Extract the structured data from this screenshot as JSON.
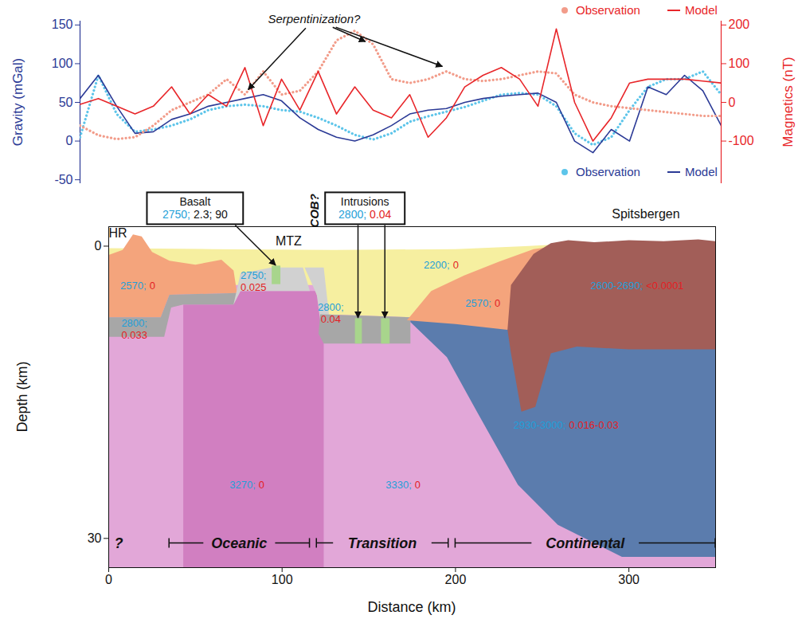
{
  "chart_data": [
    {
      "type": "line",
      "ylabel": "Gravity (mGal)",
      "x": [
        0,
        10,
        20,
        30,
        40,
        50,
        60,
        70,
        80,
        90,
        100,
        110,
        120,
        130,
        140,
        150,
        160,
        170,
        180,
        190,
        200,
        210,
        220,
        230,
        240,
        250,
        260,
        270,
        280,
        290,
        300,
        310,
        320,
        330,
        340,
        350
      ],
      "xlim": [
        0,
        350
      ],
      "ylim": [
        -55,
        155
      ],
      "yticks": [
        -50,
        0,
        50,
        100,
        150
      ],
      "tick_labels": "y",
      "legend": "bottom-right",
      "series": [
        {
          "name": "Observation",
          "color": "#5dc5ea",
          "line_style": "dotted",
          "values": [
            5,
            85,
            35,
            12,
            15,
            20,
            28,
            40,
            45,
            47,
            45,
            40,
            38,
            30,
            20,
            8,
            2,
            10,
            25,
            32,
            38,
            44,
            52,
            60,
            62,
            60,
            45,
            10,
            -5,
            5,
            40,
            70,
            80,
            80,
            90,
            60
          ]
        },
        {
          "name": "Model",
          "color": "#2b3a96",
          "line_style": "solid",
          "values": [
            55,
            85,
            45,
            10,
            12,
            28,
            35,
            45,
            50,
            55,
            60,
            52,
            30,
            15,
            5,
            0,
            8,
            20,
            35,
            40,
            42,
            50,
            55,
            58,
            60,
            62,
            50,
            0,
            -15,
            15,
            0,
            70,
            60,
            85,
            65,
            20
          ]
        }
      ],
      "annotations": [
        {
          "text": "Serpentinization?",
          "x": 128,
          "y": 157,
          "targets": [
            [
              92,
              66
            ],
            [
              156,
              128
            ],
            [
              198,
              96
            ]
          ]
        }
      ]
    },
    {
      "type": "line",
      "ylabel": "Magnetics (nT)",
      "x": [
        0,
        10,
        20,
        30,
        40,
        50,
        60,
        70,
        80,
        90,
        100,
        110,
        120,
        130,
        140,
        150,
        160,
        170,
        180,
        190,
        200,
        210,
        220,
        230,
        240,
        250,
        260,
        270,
        280,
        290,
        300,
        310,
        320,
        330,
        340,
        350
      ],
      "xlim": [
        0,
        350
      ],
      "ylim": [
        -210,
        210
      ],
      "yticks": [
        -100,
        0,
        100,
        200
      ],
      "tick_labels": "y",
      "legend": "top-right",
      "series": [
        {
          "name": "Observation",
          "color": "#f29c8a",
          "line_style": "dotted",
          "values": [
            -60,
            -85,
            -95,
            -90,
            -60,
            -20,
            0,
            20,
            60,
            20,
            80,
            20,
            30,
            80,
            160,
            185,
            150,
            60,
            50,
            60,
            80,
            60,
            55,
            60,
            70,
            80,
            75,
            20,
            0,
            -10,
            -15,
            -20,
            -25,
            -30,
            -35,
            -35
          ]
        },
        {
          "name": "Model",
          "color": "#e8262a",
          "line_style": "solid",
          "values": [
            -5,
            10,
            -10,
            -30,
            -10,
            40,
            -30,
            20,
            -10,
            90,
            -60,
            60,
            -20,
            80,
            -30,
            40,
            -20,
            -40,
            20,
            -90,
            -40,
            40,
            70,
            90,
            60,
            -10,
            190,
            0,
            -100,
            -40,
            50,
            60,
            60,
            60,
            55,
            50
          ]
        }
      ]
    },
    {
      "type": "polygon",
      "xlabel": "Distance (km)",
      "ylabel": "Depth (km)",
      "xlim": [
        0,
        350
      ],
      "ylim": [
        33,
        -2
      ],
      "xticks": [
        0,
        100,
        200,
        300
      ],
      "yticks": [
        0,
        30
      ],
      "layers": [
        {
          "color": "#e2a7d8",
          "points": [
            [
              0,
              1
            ],
            [
              350,
              1
            ],
            [
              350,
              33
            ],
            [
              0,
              33
            ]
          ]
        },
        {
          "color": "#d17fc1",
          "points": [
            [
              43,
              6.0
            ],
            [
              72,
              6.0
            ],
            [
              76,
              4.6
            ],
            [
              124,
              4.6
            ],
            [
              124,
              33
            ],
            [
              43,
              33
            ]
          ]
        },
        {
          "color": "#f6efa0",
          "points": [
            [
              0,
              0.2
            ],
            [
              60,
              0.3
            ],
            [
              130,
              0.4
            ],
            [
              200,
              0.3
            ],
            [
              240,
              0.0
            ],
            [
              262,
              -0.2
            ],
            [
              262,
              7.0
            ],
            [
              174,
              7.3
            ],
            [
              124,
              7.0
            ],
            [
              118,
              4.0
            ],
            [
              0,
              4.0
            ]
          ]
        },
        {
          "color": "#f4a47c",
          "points": [
            [
              0,
              0.9
            ],
            [
              8,
              0.4
            ],
            [
              14,
              -1.2
            ],
            [
              19,
              -1.0
            ],
            [
              25,
              0.6
            ],
            [
              35,
              1.5
            ],
            [
              50,
              1.9
            ],
            [
              65,
              1.4
            ],
            [
              72,
              2.5
            ],
            [
              74,
              4.8
            ],
            [
              35,
              5.0
            ],
            [
              30,
              7.3
            ],
            [
              0,
              7.3
            ]
          ]
        },
        {
          "color": "#a7a7a7",
          "points": [
            [
              0,
              7.3
            ],
            [
              30,
              7.3
            ],
            [
              35,
              5.0
            ],
            [
              74,
              4.8
            ],
            [
              72,
              6.0
            ],
            [
              43,
              6.0
            ],
            [
              36,
              6.3
            ],
            [
              32,
              9.3
            ],
            [
              0,
              9.3
            ]
          ]
        },
        {
          "color": "#d1d1d1",
          "points": [
            [
              72,
              6.0
            ],
            [
              76,
              2.8
            ],
            [
              94,
              2.2
            ],
            [
              112,
              2.2
            ],
            [
              116,
              4.6
            ],
            [
              76,
              4.6
            ]
          ]
        },
        {
          "color": "#d1d1d1",
          "points": [
            [
              113,
              2.2
            ],
            [
              124,
              2.2
            ],
            [
              127,
              7.0
            ],
            [
              123,
              9.0
            ],
            [
              120,
              5.0
            ]
          ]
        },
        {
          "color": "#a8d58c",
          "points": [
            [
              94,
              2.0
            ],
            [
              99,
              2.0
            ],
            [
              99,
              3.9
            ],
            [
              94,
              3.9
            ]
          ]
        },
        {
          "color": "#a7a7a7",
          "points": [
            [
              122,
              7.0
            ],
            [
              174,
              7.3
            ],
            [
              174,
              10.0
            ],
            [
              124,
              10.0
            ],
            [
              121,
              9.0
            ]
          ]
        },
        {
          "color": "#a8d58c",
          "points": [
            [
              142,
              7.4
            ],
            [
              146,
              7.4
            ],
            [
              146,
              10.0
            ],
            [
              142,
              10.0
            ]
          ]
        },
        {
          "color": "#a8d58c",
          "points": [
            [
              157,
              7.4
            ],
            [
              162,
              7.4
            ],
            [
              162,
              10.0
            ],
            [
              157,
              10.0
            ]
          ]
        },
        {
          "color": "#5b7cad",
          "points": [
            [
              174,
              7.3
            ],
            [
              350,
              7.3
            ],
            [
              350,
              31.9
            ],
            [
              296,
              31.9
            ],
            [
              259,
              28.6
            ],
            [
              236,
              24.5
            ],
            [
              213,
              17.2
            ],
            [
              195,
              11.4
            ],
            [
              174,
              7.8
            ]
          ]
        },
        {
          "color": "#f4a47c",
          "points": [
            [
              172,
              7.6
            ],
            [
              186,
              4.6
            ],
            [
              205,
              3.0
            ],
            [
              225,
              1.6
            ],
            [
              245,
              0.3
            ],
            [
              262,
              -0.1
            ],
            [
              262,
              3.0
            ],
            [
              230,
              8.6
            ],
            [
              200,
              8.0
            ]
          ]
        },
        {
          "color": "#a25e58",
          "points": [
            [
              230,
              8.6
            ],
            [
              232,
              4.0
            ],
            [
              245,
              0.8
            ],
            [
              255,
              -0.3
            ],
            [
              265,
              -0.6
            ],
            [
              280,
              -0.4
            ],
            [
              300,
              -0.6
            ],
            [
              320,
              -0.5
            ],
            [
              340,
              -0.7
            ],
            [
              350,
              -0.5
            ],
            [
              350,
              10.6
            ],
            [
              300,
              10.6
            ],
            [
              270,
              10.3
            ],
            [
              255,
              11.0
            ],
            [
              246,
              16.5
            ],
            [
              238,
              17.0
            ],
            [
              232,
              11.0
            ]
          ]
        }
      ],
      "labels": [
        {
          "parts": [
            "2570;",
            "0"
          ],
          "colors": [
            "#1f9fd8",
            "#e31e24"
          ],
          "x": 17,
          "y": 4.1
        },
        {
          "lines": [
            "2800;",
            "0.033"
          ],
          "colors": [
            "#1f9fd8",
            "#e31e24"
          ],
          "x": 15,
          "y": 7.9
        },
        {
          "lines": [
            "2750;",
            "0.025"
          ],
          "colors": [
            "#1f9fd8",
            "#e31e24"
          ],
          "x": 83.7,
          "y": 3.0
        },
        {
          "lines": [
            "2800;",
            "0.04"
          ],
          "colors": [
            "#1f9fd8",
            "#e31e24"
          ],
          "x": 128.3,
          "y": 6.3
        },
        {
          "parts": [
            "2200;",
            "0"
          ],
          "colors": [
            "#1f9fd8",
            "#e31e24"
          ],
          "x": 192,
          "y": 2.0
        },
        {
          "parts": [
            "2570;",
            "0"
          ],
          "colors": [
            "#1f9fd8",
            "#e31e24"
          ],
          "x": 216,
          "y": 5.9
        },
        {
          "parts": [
            "2600-2690;",
            "<0.0001"
          ],
          "colors": [
            "#1f9fd8",
            "#e31e24"
          ],
          "x": 305,
          "y": 4.1
        },
        {
          "parts": [
            "2930-3000;",
            "0.016-0.03"
          ],
          "colors": [
            "#1f9fd8",
            "#e31e24"
          ],
          "x": 264,
          "y": 18.4
        },
        {
          "parts": [
            "3270;",
            "0"
          ],
          "colors": [
            "#1f9fd8",
            "#e31e24"
          ],
          "x": 80,
          "y": 24.5
        },
        {
          "parts": [
            "3330;",
            "0"
          ],
          "colors": [
            "#1f9fd8",
            "#e31e24"
          ],
          "x": 170,
          "y": 24.5
        }
      ],
      "boxes": [
        {
          "title": "Basalt",
          "parts": [
            "2750;",
            "2.3; 90"
          ],
          "colors": [
            "#1f9fd8",
            "#111111"
          ],
          "x": 50,
          "y": -4.5,
          "targets": [
            [
              96.5,
              2.0
            ]
          ]
        },
        {
          "title": "Intrusions",
          "parts": [
            "2800;",
            "0.04"
          ],
          "colors": [
            "#1f9fd8",
            "#e31e24"
          ],
          "x": 148,
          "y": -4.5,
          "targets": [
            [
              144,
              7.4
            ],
            [
              159.5,
              7.4
            ]
          ]
        }
      ],
      "texts": [
        {
          "text": "HR",
          "x": 5.5,
          "y": -1.3
        },
        {
          "text": "MTZ",
          "x": 104,
          "y": -0.5
        },
        {
          "text": "Spitsbergen",
          "x": 310,
          "y": -3.3
        }
      ],
      "vertical_texts": [
        {
          "text": "COB?",
          "x": 119,
          "y": -3.6
        }
      ],
      "domains": [
        {
          "text": "?",
          "x": 6,
          "y": 30.5
        },
        {
          "text": "Oceanic",
          "from": 35,
          "to": 116,
          "y": 30.5
        },
        {
          "text": "Transition",
          "from": 120,
          "to": 196,
          "y": 30.5
        },
        {
          "text": "Continental",
          "from": 200,
          "to": 350,
          "y": 30.5
        }
      ]
    }
  ]
}
